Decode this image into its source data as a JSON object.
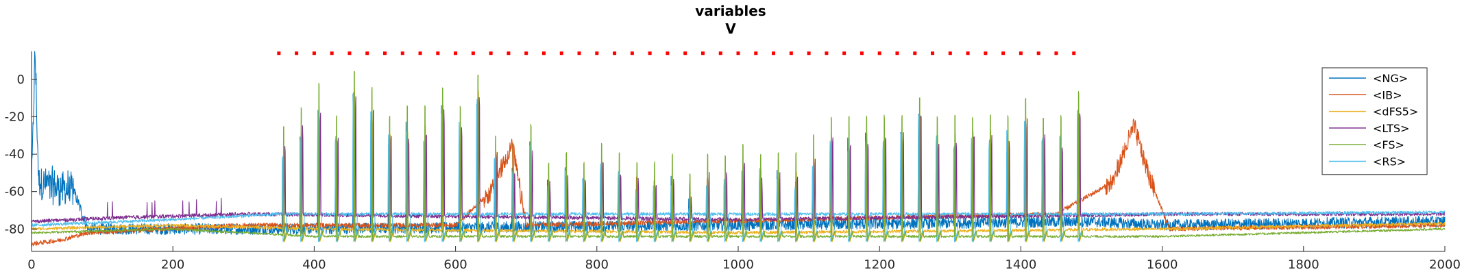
{
  "chart_data": {
    "type": "line",
    "title": "variables",
    "subtitle": "V",
    "xlabel": "",
    "ylabel": "",
    "xlim": [
      0,
      2000
    ],
    "ylim": [
      -92,
      15
    ],
    "xticks": [
      0,
      200,
      400,
      600,
      800,
      1000,
      1200,
      1400,
      1600,
      1800,
      2000
    ],
    "yticks": [
      0,
      -20,
      -40,
      -60,
      -80
    ],
    "ytick_labels": [
      "0",
      "-20",
      "-40",
      "-60",
      "-80"
    ],
    "legend_position": "top-right",
    "stimulus_markers": {
      "color": "#ff0000",
      "y": 14,
      "x": [
        350,
        375,
        400,
        425,
        450,
        475,
        500,
        525,
        550,
        575,
        600,
        625,
        650,
        675,
        700,
        725,
        750,
        775,
        800,
        825,
        850,
        875,
        900,
        925,
        950,
        975,
        1000,
        1025,
        1050,
        1075,
        1100,
        1125,
        1150,
        1175,
        1200,
        1225,
        1250,
        1275,
        1300,
        1325,
        1350,
        1375,
        1400,
        1425,
        1450,
        1475
      ]
    },
    "spike_train": {
      "start": 355,
      "period": 25,
      "count": 46,
      "fs_peaks": [
        -25,
        -15,
        -3,
        -20,
        4,
        -5,
        -20,
        -15,
        -15,
        -5,
        -15,
        3,
        -30,
        -35,
        -25,
        -45,
        -40,
        -45,
        -35,
        -40,
        -45,
        -45,
        -40,
        -50,
        -40,
        -40,
        -35,
        -40,
        -40,
        -40,
        -30,
        -20,
        -20,
        -20,
        -20,
        -20,
        -10,
        -20,
        -20,
        -20,
        -20,
        -20,
        -10,
        -20,
        -20,
        -7
      ]
    },
    "series": [
      {
        "name": "<NG>",
        "color": "#0072BD",
        "keypoints": [
          [
            0,
            -60
          ],
          [
            5,
            15
          ],
          [
            10,
            -55
          ],
          [
            60,
            -60
          ],
          [
            80,
            -80
          ],
          [
            350,
            -80
          ],
          [
            1000,
            -78
          ],
          [
            1500,
            -76
          ],
          [
            1600,
            -78
          ],
          [
            2000,
            -76
          ]
        ]
      },
      {
        "name": "<IB>",
        "color": "#D95319",
        "keypoints": [
          [
            0,
            -88
          ],
          [
            40,
            -86
          ],
          [
            80,
            -82
          ],
          [
            300,
            -78
          ],
          [
            600,
            -78
          ],
          [
            650,
            -60
          ],
          [
            680,
            -35
          ],
          [
            700,
            -78
          ],
          [
            1450,
            -72
          ],
          [
            1530,
            -55
          ],
          [
            1560,
            -25
          ],
          [
            1580,
            -50
          ],
          [
            1610,
            -80
          ],
          [
            2000,
            -78
          ]
        ]
      },
      {
        "name": "<dFS5>",
        "color": "#EDB120",
        "keypoints": [
          [
            0,
            -80
          ],
          [
            200,
            -78
          ],
          [
            400,
            -80
          ],
          [
            1000,
            -82
          ],
          [
            1600,
            -80
          ],
          [
            2000,
            -77
          ]
        ]
      },
      {
        "name": "<LTS>",
        "color": "#7E2F8E",
        "keypoints": [
          [
            0,
            -76
          ],
          [
            120,
            -74
          ],
          [
            300,
            -72
          ],
          [
            1000,
            -75
          ],
          [
            1620,
            -72
          ],
          [
            2000,
            -72
          ]
        ]
      },
      {
        "name": "<FS>",
        "color": "#77AC30",
        "keypoints": [
          [
            0,
            -82
          ],
          [
            200,
            -80
          ],
          [
            400,
            -84
          ],
          [
            1000,
            -84
          ],
          [
            1600,
            -84
          ],
          [
            2000,
            -80
          ]
        ]
      },
      {
        "name": "<RS>",
        "color": "#4DBEEE",
        "keypoints": [
          [
            0,
            -78
          ],
          [
            200,
            -75
          ],
          [
            350,
            -72
          ],
          [
            1000,
            -72
          ],
          [
            1600,
            -72
          ],
          [
            2000,
            -71
          ]
        ]
      }
    ]
  }
}
